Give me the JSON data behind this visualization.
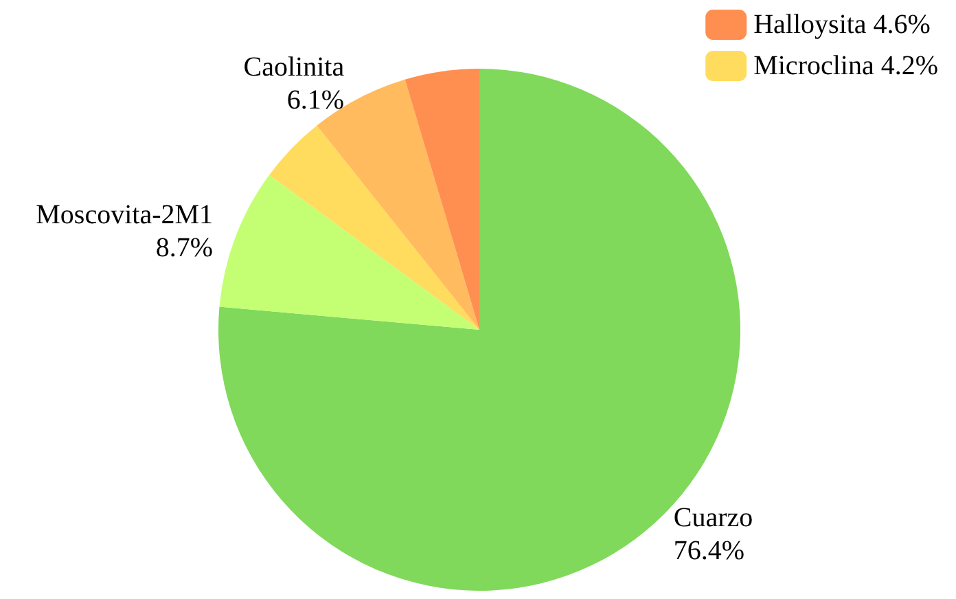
{
  "chart_data": {
    "type": "pie",
    "categories": [
      "Cuarzo",
      "Moscovita-2M1",
      "Microclina",
      "Caolinita",
      "Halloysita"
    ],
    "values": [
      76.4,
      8.7,
      4.2,
      6.1,
      4.6
    ],
    "value_labels": [
      "76.4%",
      "8.7%",
      "4.2%",
      "6.1%",
      "4.6%"
    ],
    "colors": [
      "#80d95a",
      "#c4ff73",
      "#ffdc5e",
      "#ffbb5e",
      "#ff8f50"
    ],
    "legend": "top right"
  }
}
